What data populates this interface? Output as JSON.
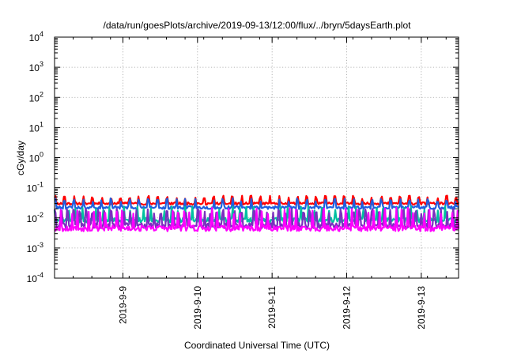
{
  "chart_data": {
    "type": "line",
    "title": "/data/run/goesPlots/archive/2019-09-13/12:00/flux/../bryn/5daysEarth.plot",
    "xlabel": "Coordinated Universal Time (UTC)",
    "ylabel": "cGy/day",
    "yscale": "log",
    "ylim": [
      0.0001,
      10000
    ],
    "y_ticks": [
      {
        "value": 0.0001,
        "mantissa": "10",
        "exp": "-4"
      },
      {
        "value": 0.001,
        "mantissa": "10",
        "exp": "-3"
      },
      {
        "value": 0.01,
        "mantissa": "10",
        "exp": "-2"
      },
      {
        "value": 0.1,
        "mantissa": "10",
        "exp": "-1"
      },
      {
        "value": 1,
        "mantissa": "10",
        "exp": "0"
      },
      {
        "value": 10,
        "mantissa": "10",
        "exp": "1"
      },
      {
        "value": 100,
        "mantissa": "10",
        "exp": "2"
      },
      {
        "value": 1000,
        "mantissa": "10",
        "exp": "3"
      },
      {
        "value": 10000,
        "mantissa": "10",
        "exp": "4"
      }
    ],
    "xlim": [
      "2019-09-08T02:00",
      "2019-09-13T12:00"
    ],
    "x_ticks": [
      {
        "value": "2019-09-09T00:00",
        "label": "2019-9-9"
      },
      {
        "value": "2019-09-10T00:00",
        "label": "2019-9-10"
      },
      {
        "value": "2019-09-11T00:00",
        "label": "2019-9-11"
      },
      {
        "value": "2019-09-12T00:00",
        "label": "2019-9-12"
      },
      {
        "value": "2019-09-13T00:00",
        "label": "2019-9-13"
      }
    ],
    "grid": true,
    "legend": "none",
    "series": [
      {
        "color": "#ff0000",
        "base": 0.03,
        "spike": 0.055,
        "period_hours": 3.0,
        "noise": 0.18,
        "seed": 11
      },
      {
        "color": "#1f5fdf",
        "base": 0.022,
        "spike": 0.045,
        "period_hours": 3.0,
        "noise": 0.22,
        "seed": 23
      },
      {
        "color": "#00c0a0",
        "base": 0.0085,
        "spike": 0.025,
        "period_hours": 2.2,
        "noise": 0.35,
        "seed": 37
      },
      {
        "color": "#7b2fbf",
        "base": 0.0055,
        "spike": 0.02,
        "period_hours": 2.0,
        "noise": 0.4,
        "seed": 41
      },
      {
        "color": "#ff00ff",
        "base": 0.0045,
        "spike": 0.022,
        "period_hours": 1.8,
        "noise": 0.45,
        "seed": 53
      }
    ]
  }
}
